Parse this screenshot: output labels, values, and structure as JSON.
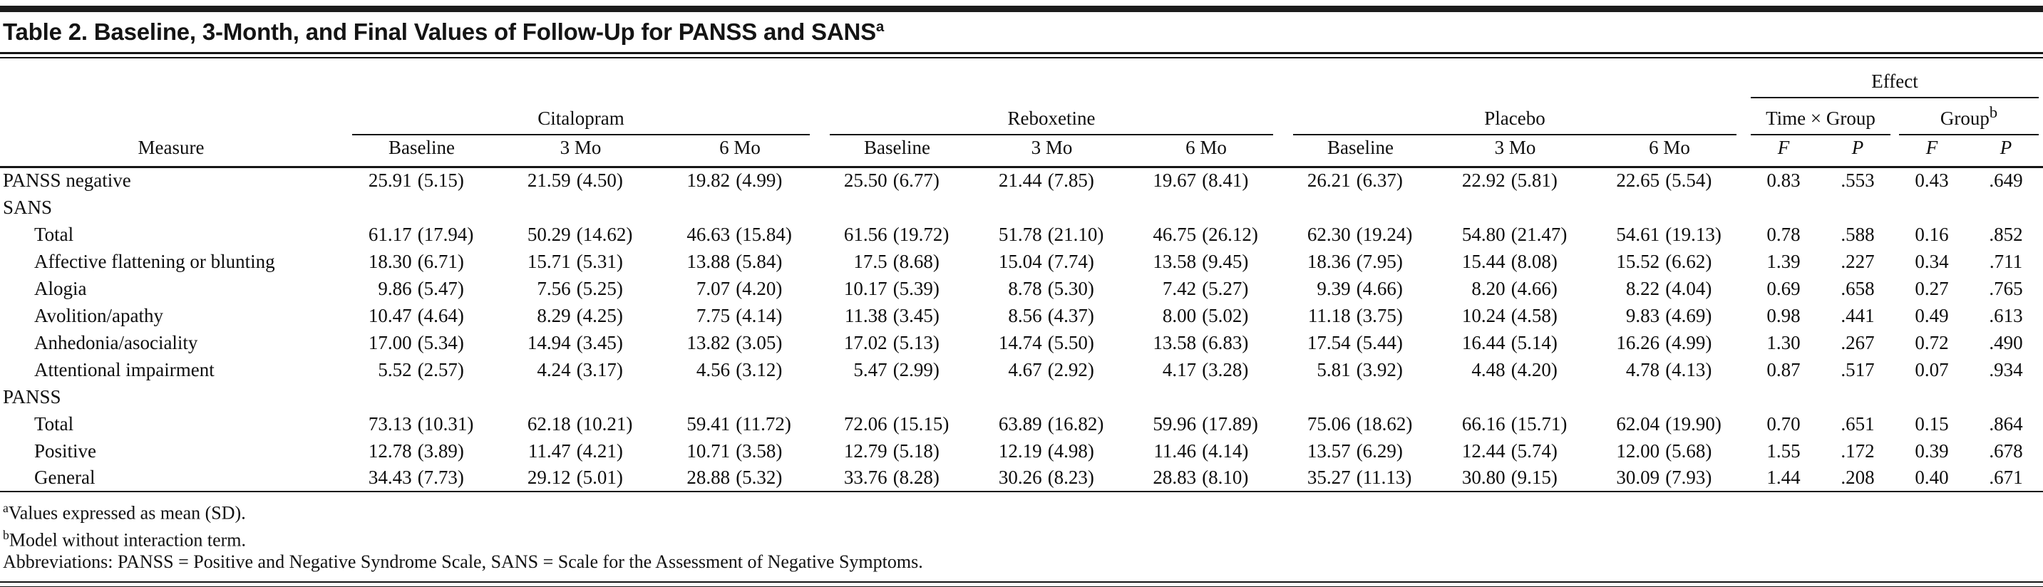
{
  "title": {
    "text": "Table 2. Baseline, 3-Month, and Final Values of Follow-Up for PANSS and SANS",
    "superscript": "a"
  },
  "table": {
    "measure_header": "Measure",
    "effect_header": "Effect",
    "groups": [
      {
        "label": "Citalopram",
        "cols": [
          "Baseline",
          "3 Mo",
          "6 Mo"
        ]
      },
      {
        "label": "Reboxetine",
        "cols": [
          "Baseline",
          "3 Mo",
          "6 Mo"
        ]
      },
      {
        "label": "Placebo",
        "cols": [
          "Baseline",
          "3 Mo",
          "6 Mo"
        ]
      }
    ],
    "effect_groups": [
      {
        "label": "Time × Group",
        "superscript": "",
        "cols": [
          "F",
          "P"
        ]
      },
      {
        "label": "Group",
        "superscript": "b",
        "cols": [
          "F",
          "P"
        ]
      }
    ],
    "rows": [
      {
        "measure": "PANSS negative",
        "indent": 0,
        "values": [
          "25.91 (5.15)",
          "21.59 (4.50)",
          "19.82 (4.99)",
          "25.50 (6.77)",
          "21.44 (7.85)",
          "19.67 (8.41)",
          "26.21 (6.37)",
          "22.92 (5.81)",
          "22.65 (5.54)",
          "0.83",
          ".553",
          "0.43",
          ".649"
        ]
      },
      {
        "measure": "SANS",
        "indent": 0,
        "values": []
      },
      {
        "measure": "Total",
        "indent": 1,
        "values": [
          "61.17 (17.94)",
          "50.29 (14.62)",
          "46.63 (15.84)",
          "61.56 (19.72)",
          "51.78 (21.10)",
          "46.75 (26.12)",
          "62.30 (19.24)",
          "54.80 (21.47)",
          "54.61 (19.13)",
          "0.78",
          ".588",
          "0.16",
          ".852"
        ]
      },
      {
        "measure": "Affective flattening or blunting",
        "indent": 1,
        "values": [
          "18.30 (6.71)",
          "15.71 (5.31)",
          "13.88 (5.84)",
          "17.5 (8.68)",
          "15.04 (7.74)",
          "13.58 (9.45)",
          "18.36 (7.95)",
          "15.44 (8.08)",
          "15.52 (6.62)",
          "1.39",
          ".227",
          "0.34",
          ".711"
        ]
      },
      {
        "measure": "Alogia",
        "indent": 1,
        "values": [
          "9.86 (5.47)",
          "7.56 (5.25)",
          "7.07 (4.20)",
          "10.17 (5.39)",
          "8.78 (5.30)",
          "7.42 (5.27)",
          "9.39 (4.66)",
          "8.20 (4.66)",
          "8.22 (4.04)",
          "0.69",
          ".658",
          "0.27",
          ".765"
        ]
      },
      {
        "measure": "Avolition/apathy",
        "indent": 1,
        "values": [
          "10.47 (4.64)",
          "8.29 (4.25)",
          "7.75 (4.14)",
          "11.38 (3.45)",
          "8.56 (4.37)",
          "8.00 (5.02)",
          "11.18 (3.75)",
          "10.24 (4.58)",
          "9.83 (4.69)",
          "0.98",
          ".441",
          "0.49",
          ".613"
        ]
      },
      {
        "measure": "Anhedonia/asociality",
        "indent": 1,
        "values": [
          "17.00 (5.34)",
          "14.94 (3.45)",
          "13.82 (3.05)",
          "17.02 (5.13)",
          "14.74 (5.50)",
          "13.58 (6.83)",
          "17.54 (5.44)",
          "16.44 (5.14)",
          "16.26 (4.99)",
          "1.30",
          ".267",
          "0.72",
          ".490"
        ]
      },
      {
        "measure": "Attentional impairment",
        "indent": 1,
        "values": [
          "5.52 (2.57)",
          "4.24 (3.17)",
          "4.56 (3.12)",
          "5.47 (2.99)",
          "4.67 (2.92)",
          "4.17 (3.28)",
          "5.81 (3.92)",
          "4.48 (4.20)",
          "4.78 (4.13)",
          "0.87",
          ".517",
          "0.07",
          ".934"
        ]
      },
      {
        "measure": "PANSS",
        "indent": 0,
        "values": []
      },
      {
        "measure": "Total",
        "indent": 1,
        "values": [
          "73.13 (10.31)",
          "62.18 (10.21)",
          "59.41 (11.72)",
          "72.06 (15.15)",
          "63.89 (16.82)",
          "59.96 (17.89)",
          "75.06 (18.62)",
          "66.16 (15.71)",
          "62.04 (19.90)",
          "0.70",
          ".651",
          "0.15",
          ".864"
        ]
      },
      {
        "measure": "Positive",
        "indent": 1,
        "values": [
          "12.78 (3.89)",
          "11.47 (4.21)",
          "10.71 (3.58)",
          "12.79 (5.18)",
          "12.19 (4.98)",
          "11.46 (4.14)",
          "13.57 (6.29)",
          "12.44 (5.74)",
          "12.00 (5.68)",
          "1.55",
          ".172",
          "0.39",
          ".678"
        ]
      },
      {
        "measure": "General",
        "indent": 1,
        "values": [
          "34.43 (7.73)",
          "29.12 (5.01)",
          "28.88 (5.32)",
          "33.76 (8.28)",
          "30.26 (8.23)",
          "28.83 (8.10)",
          "35.27 (11.13)",
          "30.80 (9.15)",
          "30.09 (7.93)",
          "1.44",
          ".208",
          "0.40",
          ".671"
        ]
      }
    ]
  },
  "footnotes": [
    {
      "marker": "a",
      "text": "Values expressed as mean (SD)."
    },
    {
      "marker": "b",
      "text": "Model without interaction term."
    },
    {
      "marker": "",
      "text": "Abbreviations: PANSS = Positive and Negative Syndrome Scale, SANS = Scale for the Assessment of Negative Symptoms."
    }
  ]
}
